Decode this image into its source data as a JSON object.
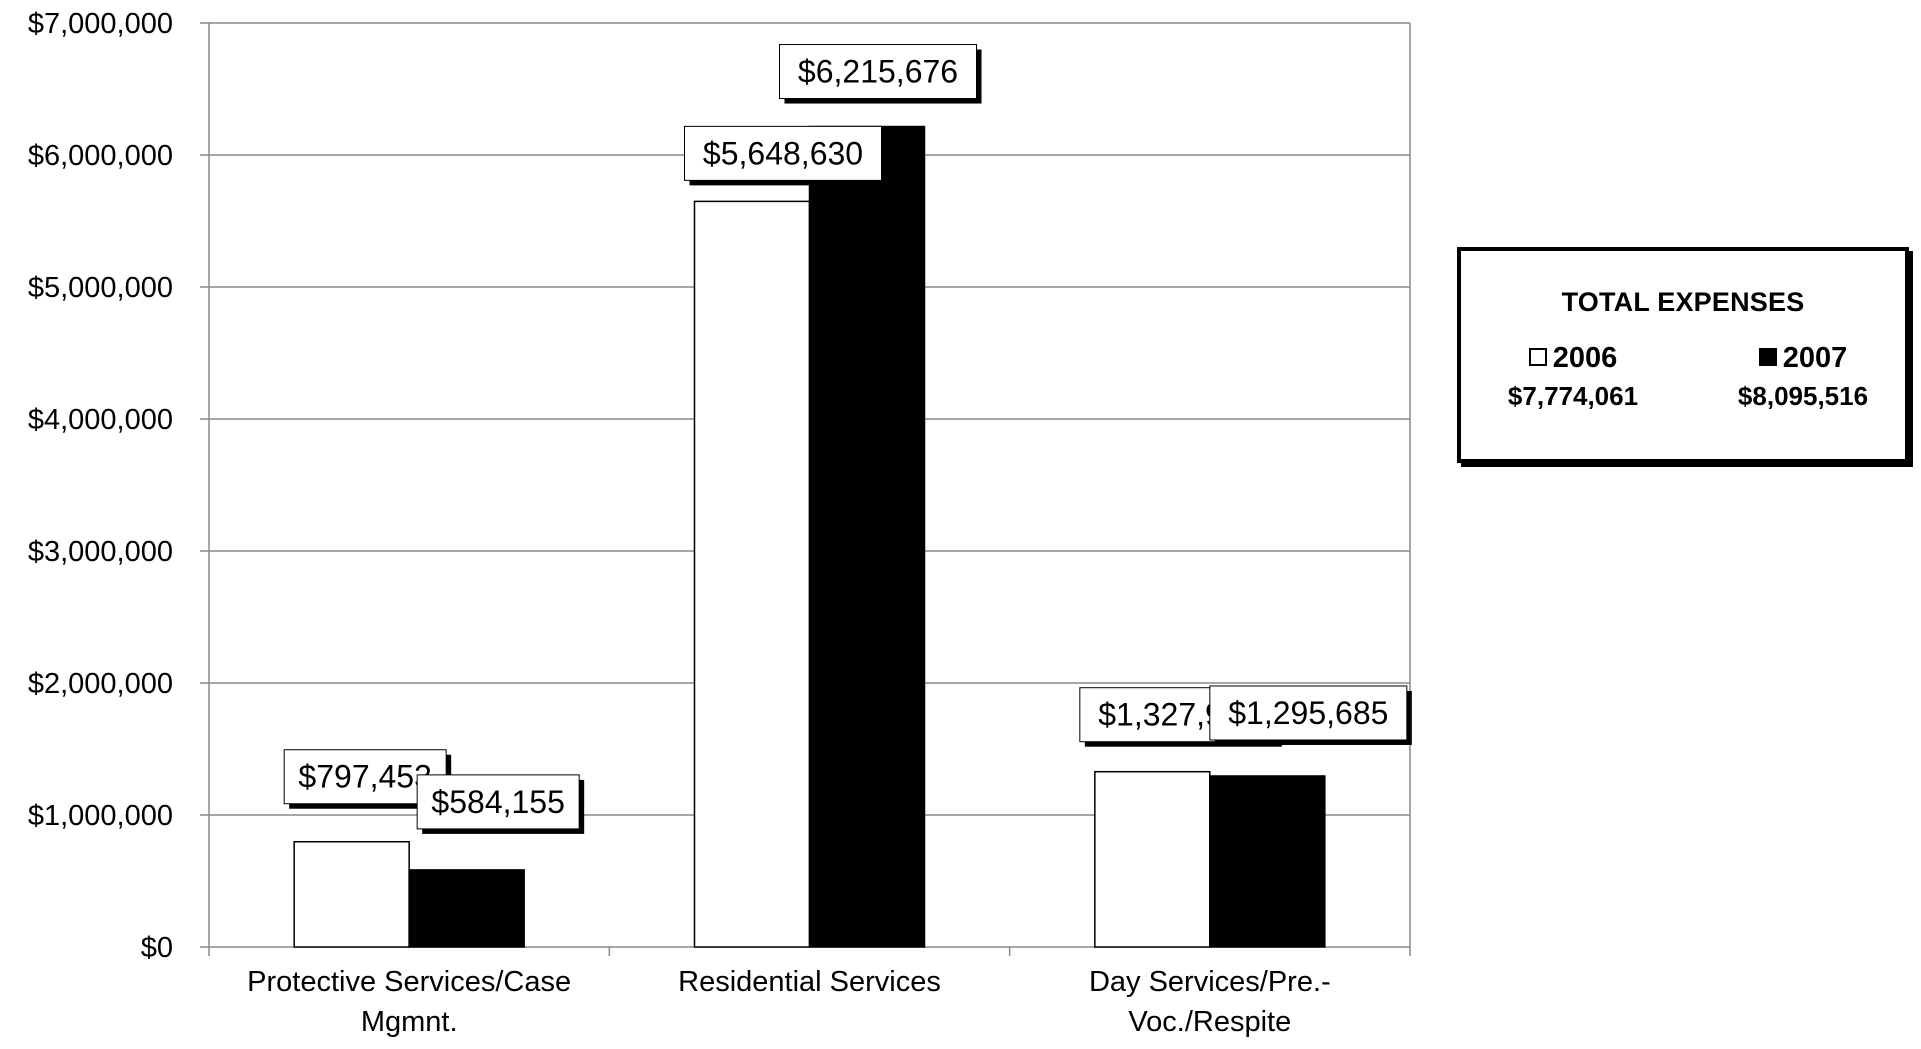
{
  "chart_data": {
    "type": "bar",
    "categories": [
      [
        "Protective Services/Case",
        "Mgmnt."
      ],
      [
        "Residential Services"
      ],
      [
        "Day Services/Pre.-",
        "Voc./Respite"
      ]
    ],
    "series": [
      {
        "name": "2006",
        "color": "#ffffff",
        "values": [
          797453,
          5648630,
          1327978
        ],
        "labels": [
          "$797,453",
          "$5,648,630",
          "$1,327,978"
        ]
      },
      {
        "name": "2007",
        "color": "#000000",
        "values": [
          584155,
          6215676,
          1295685
        ],
        "labels": [
          "$584,155",
          "$6,215,676",
          "$1,295,685"
        ]
      }
    ],
    "ylim": [
      0,
      7000000
    ],
    "yticks": [
      0,
      1000000,
      2000000,
      3000000,
      4000000,
      5000000,
      6000000,
      7000000
    ],
    "ytick_labels": [
      "$0",
      "$1,000,000",
      "$2,000,000",
      "$3,000,000",
      "$4,000,000",
      "$5,000,000",
      "$6,000,000",
      "$7,000,000"
    ],
    "grid": true,
    "legend_placement": "right",
    "legend": {
      "title": "TOTAL EXPENSES",
      "entries": [
        {
          "label": "2006",
          "total": "$7,774,061"
        },
        {
          "label": "2007",
          "total": "$8,095,516"
        }
      ]
    }
  }
}
